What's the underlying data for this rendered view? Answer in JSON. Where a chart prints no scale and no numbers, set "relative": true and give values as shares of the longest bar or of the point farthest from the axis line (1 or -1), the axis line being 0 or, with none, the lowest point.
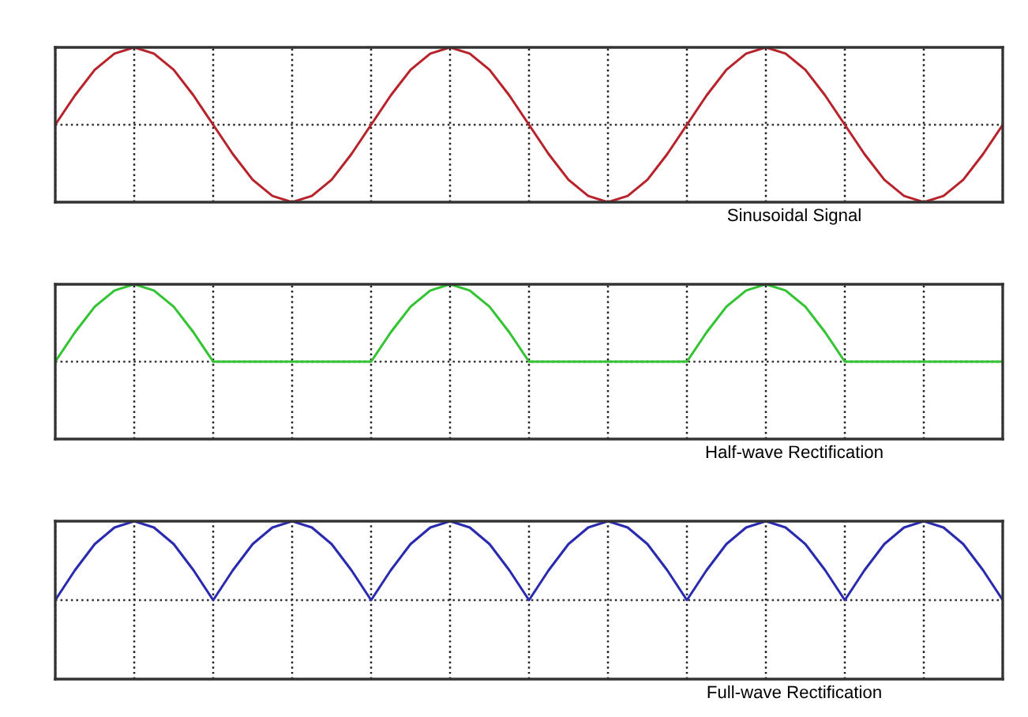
{
  "chart_data": [
    {
      "type": "line",
      "relative": true,
      "categories": [
        null,
        null,
        null,
        null,
        null,
        null,
        null,
        null,
        null,
        null,
        null,
        null,
        null,
        null,
        null,
        null,
        null,
        null,
        null,
        null,
        null,
        null,
        null,
        null,
        null,
        null,
        null,
        null,
        null,
        null,
        null,
        null,
        null,
        null,
        null,
        null,
        null,
        null,
        null,
        null,
        null,
        null,
        null,
        null,
        null,
        null,
        null,
        null,
        null
      ],
      "series": [
        {
          "color": "#b8232b",
          "values": [
            0,
            0.38,
            0.71,
            0.92,
            1,
            0.92,
            0.71,
            0.38,
            0,
            -0.38,
            -0.71,
            -0.92,
            -1,
            -0.92,
            -0.71,
            -0.38,
            0,
            0.38,
            0.71,
            0.92,
            1,
            0.92,
            0.71,
            0.38,
            0,
            -0.38,
            -0.71,
            -0.92,
            -1,
            -0.92,
            -0.71,
            -0.38,
            0,
            0.38,
            0.71,
            0.92,
            1,
            0.92,
            0.71,
            0.38,
            0,
            -0.38,
            -0.71,
            -0.92,
            -1,
            -0.92,
            -0.71,
            -0.38,
            0
          ]
        }
      ],
      "grid": "x",
      "ref_lines": [
        {
          "axis": "y",
          "value": 0,
          "line_style": "dotted",
          "color": "#333333"
        }
      ],
      "annotations": [
        "Sinusoidal Signal"
      ],
      "tick_labels": false
    },
    {
      "type": "line",
      "relative": true,
      "categories": [
        null,
        null,
        null,
        null,
        null,
        null,
        null,
        null,
        null,
        null,
        null,
        null,
        null,
        null,
        null,
        null,
        null,
        null,
        null,
        null,
        null,
        null,
        null,
        null,
        null,
        null,
        null,
        null,
        null,
        null,
        null,
        null,
        null,
        null,
        null,
        null,
        null,
        null,
        null,
        null,
        null,
        null,
        null,
        null,
        null,
        null,
        null,
        null,
        null
      ],
      "series": [
        {
          "color": "#33c433",
          "values": [
            0,
            0.38,
            0.71,
            0.92,
            1,
            0.92,
            0.71,
            0.38,
            0,
            0,
            0,
            0,
            0,
            0,
            0,
            0,
            0,
            0.38,
            0.71,
            0.92,
            1,
            0.92,
            0.71,
            0.38,
            0,
            0,
            0,
            0,
            0,
            0,
            0,
            0,
            0,
            0.38,
            0.71,
            0.92,
            1,
            0.92,
            0.71,
            0.38,
            0,
            0,
            0,
            0,
            0,
            0,
            0,
            0,
            0
          ]
        }
      ],
      "grid": "x",
      "ref_lines": [
        {
          "axis": "y",
          "value": 0,
          "line_style": "dotted",
          "color": "#333333"
        }
      ],
      "annotations": [
        "Half-wave Rectification"
      ],
      "tick_labels": false
    },
    {
      "type": "line",
      "relative": true,
      "categories": [
        null,
        null,
        null,
        null,
        null,
        null,
        null,
        null,
        null,
        null,
        null,
        null,
        null,
        null,
        null,
        null,
        null,
        null,
        null,
        null,
        null,
        null,
        null,
        null,
        null,
        null,
        null,
        null,
        null,
        null,
        null,
        null,
        null,
        null,
        null,
        null,
        null,
        null,
        null,
        null,
        null,
        null,
        null,
        null,
        null,
        null,
        null,
        null,
        null
      ],
      "series": [
        {
          "color": "#2a2ab0",
          "values": [
            0,
            0.38,
            0.71,
            0.92,
            1,
            0.92,
            0.71,
            0.38,
            0,
            0.38,
            0.71,
            0.92,
            1,
            0.92,
            0.71,
            0.38,
            0,
            0.38,
            0.71,
            0.92,
            1,
            0.92,
            0.71,
            0.38,
            0,
            0.38,
            0.71,
            0.92,
            1,
            0.92,
            0.71,
            0.38,
            0,
            0.38,
            0.71,
            0.92,
            1,
            0.92,
            0.71,
            0.38,
            0,
            0.38,
            0.71,
            0.92,
            1,
            0.92,
            0.71,
            0.38,
            0
          ]
        }
      ],
      "grid": "x",
      "ref_lines": [
        {
          "axis": "y",
          "value": 0,
          "line_style": "dotted",
          "color": "#333333"
        }
      ],
      "annotations": [
        "Full-wave Rectification"
      ],
      "tick_labels": false
    }
  ]
}
